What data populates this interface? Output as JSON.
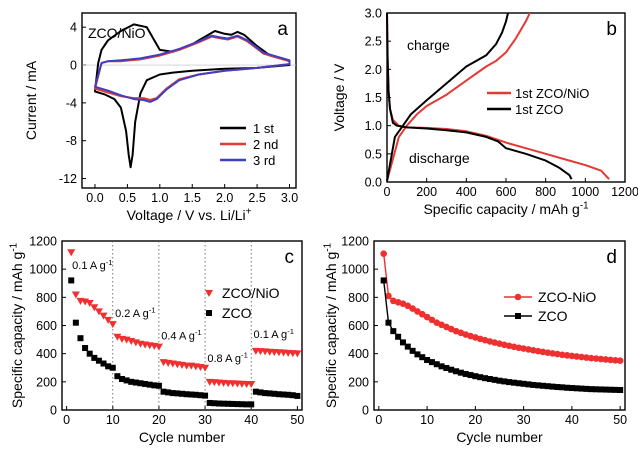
{
  "chart_data": [
    {
      "panel": "a",
      "type": "line",
      "annotation": "ZCO/NiO",
      "xlabel": "Voltage / V vs. Li/Li",
      "xlabel_sup": "+",
      "ylabel": "Current / mA",
      "xlim": [
        -0.2,
        3.1
      ],
      "ylim": [
        -13,
        5.5
      ],
      "xticks": [
        0.0,
        0.5,
        1.0,
        1.5,
        2.0,
        2.5,
        3.0
      ],
      "xtick_labels": [
        "0.0",
        "0.5",
        "1.0",
        "1.5",
        "2.0",
        "2.5",
        "3.0"
      ],
      "yticks": [
        -12,
        -8,
        -4,
        0,
        4
      ],
      "ytick_labels": [
        "-12",
        "-8",
        "-4",
        "0",
        "4"
      ],
      "legend_position": "lower-right",
      "series": [
        {
          "name": "1 st",
          "color": "#000000",
          "closed": true,
          "x": [
            0.0,
            0.15,
            0.3,
            0.4,
            0.48,
            0.52,
            0.55,
            0.58,
            0.62,
            0.7,
            0.8,
            1.0,
            1.2,
            1.5,
            2.0,
            2.5,
            3.0,
            3.0,
            2.7,
            2.5,
            2.3,
            2.2,
            2.1,
            2.0,
            1.85,
            1.7,
            1.5,
            1.2,
            1.0,
            0.8,
            0.6,
            0.4,
            0.2,
            0.1,
            0.05,
            0.0
          ],
          "y": [
            -2.8,
            -3.1,
            -3.6,
            -4.5,
            -7.0,
            -9.5,
            -10.8,
            -9.5,
            -6.0,
            -3.0,
            -1.6,
            -1.0,
            -0.8,
            -0.6,
            -0.4,
            -0.3,
            0.0,
            0.4,
            1.0,
            2.0,
            3.2,
            3.5,
            3.2,
            3.3,
            3.6,
            3.0,
            2.2,
            1.4,
            1.6,
            4.0,
            4.3,
            3.6,
            2.6,
            1.6,
            0.2,
            -2.8
          ]
        },
        {
          "name": "2 nd",
          "color": "#e53935",
          "closed": true,
          "x": [
            0.0,
            0.2,
            0.4,
            0.6,
            0.75,
            0.85,
            0.95,
            1.1,
            1.3,
            1.6,
            2.0,
            2.5,
            3.0,
            3.0,
            2.6,
            2.35,
            2.2,
            2.05,
            1.95,
            1.8,
            1.6,
            1.3,
            1.0,
            0.7,
            0.4,
            0.2,
            0.1,
            0.0
          ],
          "y": [
            -2.5,
            -2.9,
            -3.3,
            -3.5,
            -3.5,
            -3.7,
            -3.5,
            -2.5,
            -1.5,
            -1.0,
            -0.6,
            -0.3,
            0.1,
            0.4,
            1.2,
            2.5,
            3.0,
            2.7,
            2.8,
            3.0,
            2.4,
            1.6,
            1.0,
            0.6,
            0.4,
            0.4,
            0.2,
            -2.5
          ]
        },
        {
          "name": "3 rd",
          "color": "#3f3fbf",
          "closed": true,
          "x": [
            0.0,
            0.2,
            0.4,
            0.6,
            0.75,
            0.85,
            0.95,
            1.1,
            1.3,
            1.6,
            2.0,
            2.5,
            3.0,
            3.0,
            2.6,
            2.35,
            2.2,
            2.05,
            1.95,
            1.8,
            1.6,
            1.3,
            1.0,
            0.7,
            0.4,
            0.2,
            0.1,
            0.0
          ],
          "y": [
            -2.3,
            -2.7,
            -3.2,
            -3.6,
            -3.7,
            -3.9,
            -3.6,
            -2.6,
            -1.6,
            -1.0,
            -0.6,
            -0.3,
            0.1,
            0.5,
            1.3,
            2.6,
            3.1,
            2.8,
            2.9,
            3.1,
            2.5,
            1.7,
            1.1,
            0.7,
            0.5,
            0.4,
            0.2,
            -2.3
          ]
        }
      ]
    },
    {
      "panel": "b",
      "type": "line",
      "xlabel": "Specific capacity / mAh g",
      "xlabel_sup": "-1",
      "ylabel": "Voltage / V",
      "xlim": [
        0,
        1200
      ],
      "ylim": [
        0,
        3.0
      ],
      "xticks": [
        0,
        200,
        400,
        600,
        800,
        1000,
        1200
      ],
      "xtick_labels": [
        "0",
        "200",
        "400",
        "600",
        "800",
        "1000",
        "1200"
      ],
      "yticks": [
        0.0,
        0.5,
        1.0,
        1.5,
        2.0,
        2.5,
        3.0
      ],
      "ytick_labels": [
        "0.0",
        "0.5",
        "1.0",
        "1.5",
        "2.0",
        "2.5",
        "3.0"
      ],
      "annotations": [
        "charge",
        "discharge"
      ],
      "legend_position": "right",
      "series": [
        {
          "name": "1st ZCO/NiO",
          "color": "#e53935",
          "x": [
            0,
            3,
            8,
            15,
            30,
            60,
            100,
            200,
            300,
            400,
            500,
            600,
            700,
            800,
            900,
            1000,
            1080,
            1120,
            null,
            0,
            60,
            100,
            150,
            200,
            300,
            400,
            500,
            550,
            600,
            650,
            700,
            720
          ],
          "y": [
            3.0,
            2.2,
            1.6,
            1.3,
            1.1,
            1.0,
            0.97,
            0.96,
            0.94,
            0.9,
            0.82,
            0.7,
            0.6,
            0.5,
            0.4,
            0.3,
            0.2,
            0.05,
            null,
            0.02,
            0.8,
            1.0,
            1.2,
            1.35,
            1.55,
            1.8,
            2.05,
            2.15,
            2.3,
            2.55,
            2.85,
            3.0
          ]
        },
        {
          "name": "1st ZCO",
          "color": "#000000",
          "x": [
            0,
            3,
            8,
            15,
            30,
            50,
            100,
            200,
            300,
            400,
            500,
            560,
            600,
            700,
            800,
            870,
            920,
            930,
            null,
            0,
            40,
            80,
            120,
            200,
            300,
            400,
            450,
            500,
            550,
            580,
            600,
            610
          ],
          "y": [
            3.0,
            2.2,
            1.6,
            1.3,
            1.05,
            1.0,
            0.97,
            0.95,
            0.92,
            0.88,
            0.8,
            0.72,
            0.6,
            0.5,
            0.38,
            0.25,
            0.12,
            0.05,
            null,
            0.02,
            0.8,
            1.0,
            1.2,
            1.45,
            1.75,
            2.05,
            2.15,
            2.25,
            2.45,
            2.65,
            2.85,
            3.0
          ]
        }
      ]
    },
    {
      "panel": "c",
      "type": "scatter",
      "xlabel": "Cycle number",
      "ylabel": "Specific capacity / mAh g",
      "ylabel_sup": "-1",
      "xlim": [
        -1,
        51
      ],
      "ylim": [
        0,
        1200
      ],
      "xticks": [
        0,
        10,
        20,
        30,
        40,
        50
      ],
      "xtick_labels": [
        "0",
        "10",
        "20",
        "30",
        "40",
        "50"
      ],
      "yticks": [
        0,
        200,
        400,
        600,
        800,
        1000,
        1200
      ],
      "ytick_labels": [
        "0",
        "200",
        "400",
        "600",
        "800",
        "1000",
        "1200"
      ],
      "rate_labels": [
        {
          "text": "0.1 A g",
          "sup": "-1",
          "x": 1.2,
          "y": 1000
        },
        {
          "text": "0.2 A g",
          "sup": "-1",
          "x": 10.5,
          "y": 660
        },
        {
          "text": "0.4 A g",
          "sup": "-1",
          "x": 20.5,
          "y": 500
        },
        {
          "text": "0.8 A g",
          "sup": "-1",
          "x": 30.5,
          "y": 340
        },
        {
          "text": "0.1 A g",
          "sup": "-1",
          "x": 40.5,
          "y": 510
        }
      ],
      "dividers": [
        10,
        20,
        30,
        40
      ],
      "legend_position": "top-right",
      "series": [
        {
          "name": "ZCO/NiO",
          "color": "#ee3030",
          "marker": "triangle-down",
          "x": [
            1,
            2,
            3,
            4,
            5,
            6,
            7,
            8,
            9,
            10,
            11,
            12,
            13,
            14,
            15,
            16,
            17,
            18,
            19,
            20,
            21,
            22,
            23,
            24,
            25,
            26,
            27,
            28,
            29,
            30,
            31,
            32,
            33,
            34,
            35,
            36,
            37,
            38,
            39,
            40,
            41,
            42,
            43,
            44,
            45,
            46,
            47,
            48,
            49,
            50
          ],
          "y": [
            1120,
            820,
            775,
            770,
            760,
            730,
            700,
            670,
            640,
            610,
            520,
            505,
            500,
            490,
            480,
            470,
            465,
            460,
            455,
            450,
            340,
            335,
            330,
            325,
            320,
            315,
            315,
            310,
            305,
            300,
            200,
            198,
            195,
            193,
            190,
            190,
            188,
            186,
            185,
            185,
            420,
            418,
            416,
            414,
            412,
            410,
            408,
            406,
            404,
            402
          ]
        },
        {
          "name": "ZCO",
          "color": "#000000",
          "marker": "square",
          "x": [
            1,
            2,
            3,
            4,
            5,
            6,
            7,
            8,
            9,
            10,
            11,
            12,
            13,
            14,
            15,
            16,
            17,
            18,
            19,
            20,
            21,
            22,
            23,
            24,
            25,
            26,
            27,
            28,
            29,
            30,
            31,
            32,
            33,
            34,
            35,
            36,
            37,
            38,
            39,
            40,
            41,
            42,
            43,
            44,
            45,
            46,
            47,
            48,
            49,
            50
          ],
          "y": [
            920,
            620,
            510,
            440,
            400,
            370,
            350,
            330,
            310,
            300,
            240,
            220,
            210,
            200,
            195,
            190,
            185,
            180,
            175,
            172,
            130,
            125,
            120,
            118,
            115,
            112,
            110,
            108,
            105,
            102,
            50,
            48,
            46,
            45,
            44,
            43,
            42,
            41,
            40,
            40,
            130,
            125,
            120,
            118,
            115,
            112,
            110,
            108,
            105,
            100
          ]
        }
      ]
    },
    {
      "panel": "d",
      "type": "line",
      "xlabel": "Cycle number",
      "ylabel": "Specific capacity / mAh g",
      "ylabel_sup": "-1",
      "xlim": [
        -1,
        51
      ],
      "ylim": [
        0,
        1200
      ],
      "xticks": [
        0,
        10,
        20,
        30,
        40,
        50
      ],
      "xtick_labels": [
        "0",
        "10",
        "20",
        "30",
        "40",
        "50"
      ],
      "yticks": [
        0,
        200,
        400,
        600,
        800,
        1000,
        1200
      ],
      "ytick_labels": [
        "0",
        "200",
        "400",
        "600",
        "800",
        "1000",
        "1200"
      ],
      "legend_position": "top-right",
      "series": [
        {
          "name": "ZCO-NiO",
          "color": "#ee3030",
          "marker": "circle",
          "x": [
            1,
            2,
            3,
            4,
            5,
            6,
            7,
            8,
            9,
            10,
            11,
            12,
            13,
            14,
            15,
            16,
            17,
            18,
            19,
            20,
            21,
            22,
            23,
            24,
            25,
            26,
            27,
            28,
            29,
            30,
            31,
            32,
            33,
            34,
            35,
            36,
            37,
            38,
            39,
            40,
            41,
            42,
            43,
            44,
            45,
            46,
            47,
            48,
            49,
            50
          ],
          "y": [
            1110,
            810,
            775,
            765,
            755,
            740,
            720,
            700,
            680,
            660,
            640,
            620,
            605,
            590,
            575,
            560,
            548,
            536,
            525,
            515,
            505,
            496,
            487,
            479,
            471,
            463,
            456,
            449,
            442,
            436,
            430,
            424,
            418,
            412,
            407,
            402,
            397,
            392,
            388,
            384,
            380,
            376,
            372,
            368,
            365,
            362,
            359,
            356,
            353,
            350
          ]
        },
        {
          "name": "ZCO",
          "color": "#000000",
          "marker": "square",
          "x": [
            1,
            2,
            3,
            4,
            5,
            6,
            7,
            8,
            9,
            10,
            11,
            12,
            13,
            14,
            15,
            16,
            17,
            18,
            19,
            20,
            21,
            22,
            23,
            24,
            25,
            26,
            27,
            28,
            29,
            30,
            31,
            32,
            33,
            34,
            35,
            36,
            37,
            38,
            39,
            40,
            41,
            42,
            43,
            44,
            45,
            46,
            47,
            48,
            49,
            50
          ],
          "y": [
            920,
            620,
            560,
            520,
            480,
            450,
            420,
            395,
            375,
            355,
            340,
            325,
            310,
            298,
            286,
            275,
            265,
            256,
            248,
            240,
            233,
            226,
            220,
            214,
            208,
            203,
            198,
            194,
            190,
            186,
            182,
            178,
            175,
            172,
            169,
            166,
            163,
            161,
            158,
            156,
            154,
            152,
            150,
            148,
            147,
            146,
            145,
            144,
            143,
            142
          ]
        }
      ]
    }
  ]
}
